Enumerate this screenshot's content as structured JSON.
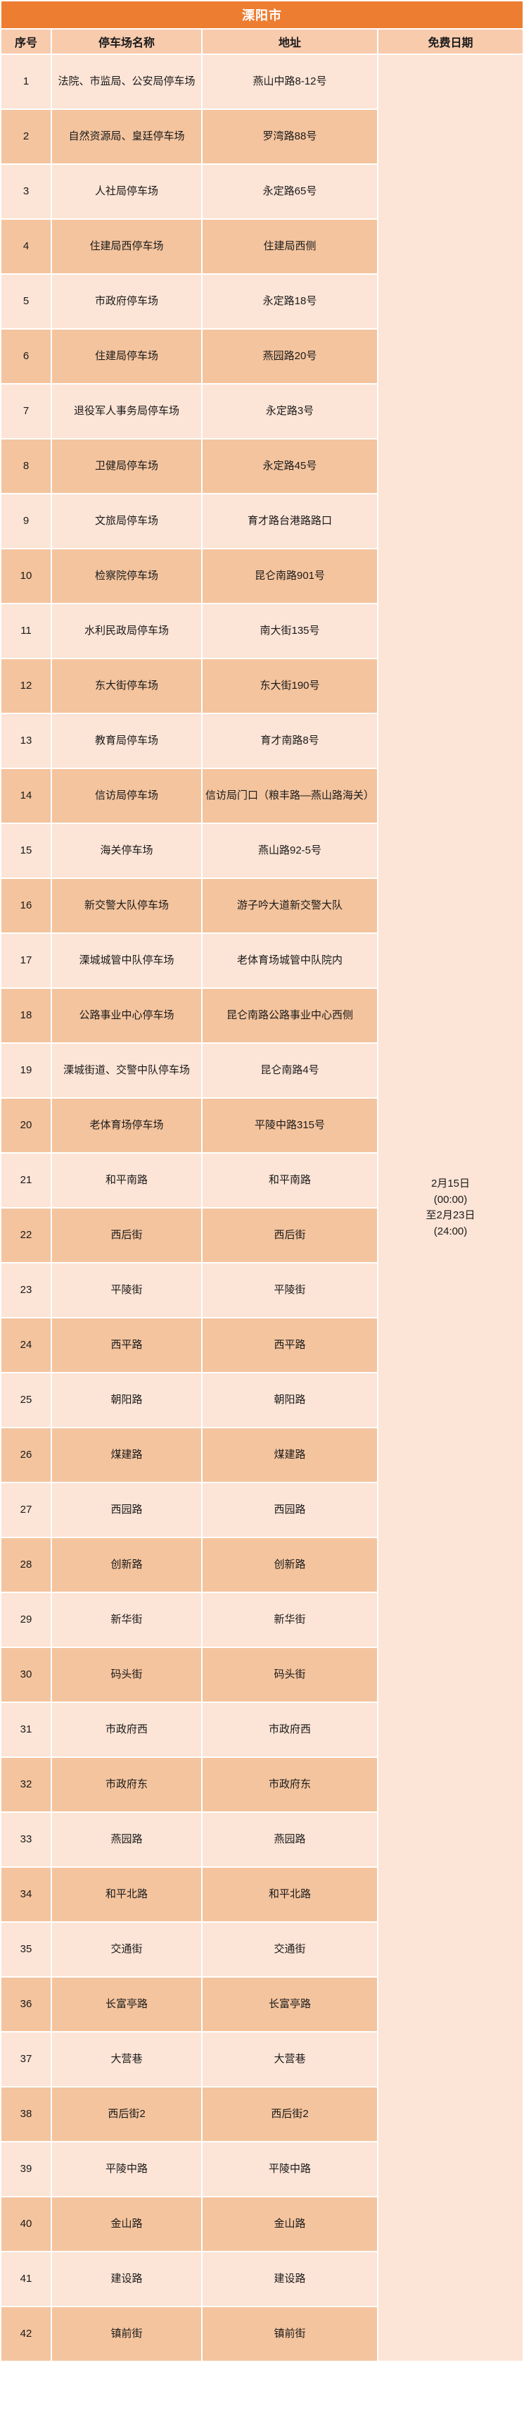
{
  "table": {
    "title": "溧阳市",
    "columns": [
      "序号",
      "停车场名称",
      "地址",
      "免费日期"
    ],
    "free_date_lines": [
      "2月15日",
      "(00:00)",
      "至2月23日",
      "(24:00)"
    ],
    "rows": [
      {
        "no": "1",
        "name": "法院、市监局、公安局停车场",
        "address": "燕山中路8-12号"
      },
      {
        "no": "2",
        "name": "自然资源局、皇廷停车场",
        "address": "罗湾路88号"
      },
      {
        "no": "3",
        "name": "人社局停车场",
        "address": "永定路65号"
      },
      {
        "no": "4",
        "name": "住建局西停车场",
        "address": "住建局西侧"
      },
      {
        "no": "5",
        "name": "市政府停车场",
        "address": "永定路18号"
      },
      {
        "no": "6",
        "name": "住建局停车场",
        "address": "燕园路20号"
      },
      {
        "no": "7",
        "name": "退役军人事务局停车场",
        "address": "永定路3号"
      },
      {
        "no": "8",
        "name": "卫健局停车场",
        "address": "永定路45号"
      },
      {
        "no": "9",
        "name": "文旅局停车场",
        "address": "育才路台港路路口"
      },
      {
        "no": "10",
        "name": "检察院停车场",
        "address": "昆仑南路901号"
      },
      {
        "no": "11",
        "name": "水利民政局停车场",
        "address": "南大街135号"
      },
      {
        "no": "12",
        "name": "东大街停车场",
        "address": "东大街190号"
      },
      {
        "no": "13",
        "name": "教育局停车场",
        "address": "育才南路8号"
      },
      {
        "no": "14",
        "name": "信访局停车场",
        "address": "信访局门口（粮丰路—燕山路海关）"
      },
      {
        "no": "15",
        "name": "海关停车场",
        "address": "燕山路92-5号"
      },
      {
        "no": "16",
        "name": "新交警大队停车场",
        "address": "游子吟大道新交警大队"
      },
      {
        "no": "17",
        "name": "溧城城管中队停车场",
        "address": "老体育场城管中队院内"
      },
      {
        "no": "18",
        "name": "公路事业中心停车场",
        "address": "昆仑南路公路事业中心西侧"
      },
      {
        "no": "19",
        "name": "溧城街道、交警中队停车场",
        "address": "昆仑南路4号"
      },
      {
        "no": "20",
        "name": "老体育场停车场",
        "address": "平陵中路315号"
      },
      {
        "no": "21",
        "name": "和平南路",
        "address": "和平南路"
      },
      {
        "no": "22",
        "name": "西后街",
        "address": "西后街"
      },
      {
        "no": "23",
        "name": "平陵街",
        "address": "平陵街"
      },
      {
        "no": "24",
        "name": "西平路",
        "address": "西平路"
      },
      {
        "no": "25",
        "name": "朝阳路",
        "address": "朝阳路"
      },
      {
        "no": "26",
        "name": "煤建路",
        "address": "煤建路"
      },
      {
        "no": "27",
        "name": "西园路",
        "address": "西园路"
      },
      {
        "no": "28",
        "name": "创新路",
        "address": "创新路"
      },
      {
        "no": "29",
        "name": "新华街",
        "address": "新华街"
      },
      {
        "no": "30",
        "name": "码头街",
        "address": "码头街"
      },
      {
        "no": "31",
        "name": "市政府西",
        "address": "市政府西"
      },
      {
        "no": "32",
        "name": "市政府东",
        "address": "市政府东"
      },
      {
        "no": "33",
        "name": "燕园路",
        "address": "燕园路"
      },
      {
        "no": "34",
        "name": "和平北路",
        "address": "和平北路"
      },
      {
        "no": "35",
        "name": "交通街",
        "address": "交通街"
      },
      {
        "no": "36",
        "name": "长富亭路",
        "address": "长富亭路"
      },
      {
        "no": "37",
        "name": "大营巷",
        "address": "大营巷"
      },
      {
        "no": "38",
        "name": "西后街2",
        "address": "西后街2"
      },
      {
        "no": "39",
        "name": "平陵中路",
        "address": "平陵中路"
      },
      {
        "no": "40",
        "name": "金山路",
        "address": "金山路"
      },
      {
        "no": "41",
        "name": "建设路",
        "address": "建设路"
      },
      {
        "no": "42",
        "name": "镇前街",
        "address": "镇前街"
      }
    ]
  },
  "colors": {
    "title_bg": "#ED7D31",
    "title_text": "#FFFFFF",
    "header_bg": "#F8CBAD",
    "row_light": "#FCE4D6",
    "row_dark": "#F4C49E",
    "free_cell_bg": "#FCE4D6",
    "text": "#1A1A1A"
  }
}
